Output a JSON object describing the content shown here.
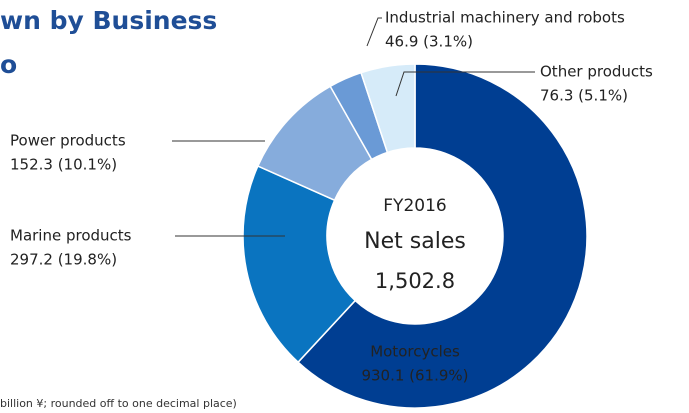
{
  "chart_data": {
    "type": "pie",
    "title": "wn by Business",
    "subtitle": "o",
    "note": "billion ¥; rounded off to one decimal place)",
    "center_labels": [
      "FY2016",
      "Net sales",
      "1,502.8"
    ],
    "categories": [
      "Motorcycles",
      "Marine products",
      "Power products",
      "Industrial machinery and robots",
      "Other products"
    ],
    "values": [
      930.1,
      297.2,
      152.3,
      46.9,
      76.3
    ],
    "value_labels": [
      "930.1 (61.9%)",
      "297.2 (19.8%)",
      "152.3 (10.1%)",
      "46.9 (3.1%)",
      "76.3 (5.1%)"
    ],
    "colors": [
      "#003e92",
      "#0a74c0",
      "#86acdc",
      "#6a9ad6",
      "#d6ebf9"
    ]
  }
}
